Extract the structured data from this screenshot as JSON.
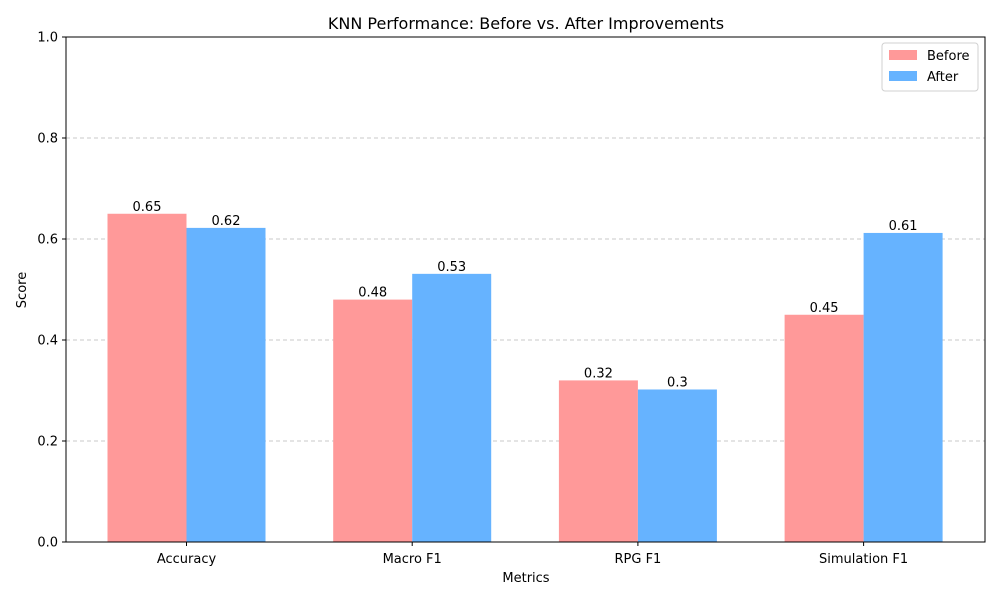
{
  "chart_data": {
    "type": "bar",
    "title": "KNN Performance: Before vs. After Improvements",
    "xlabel": "Metrics",
    "ylabel": "Score",
    "categories": [
      "Accuracy",
      "Macro F1",
      "RPG F1",
      "Simulation F1"
    ],
    "series": [
      {
        "name": "Before",
        "color": "#ff9999",
        "values": [
          0.65,
          0.48,
          0.32,
          0.45
        ],
        "labels": [
          "0.65",
          "0.48",
          "0.32",
          "0.45"
        ]
      },
      {
        "name": "After",
        "color": "#66b3ff",
        "values": [
          0.622,
          0.531,
          0.302,
          0.612
        ],
        "labels": [
          "0.62",
          "0.53",
          "0.3",
          "0.61"
        ]
      }
    ],
    "ylim": [
      0,
      1.0
    ],
    "yticks": [
      0.0,
      0.2,
      0.4,
      0.6,
      0.8,
      1.0
    ],
    "ytick_labels": [
      "0.0",
      "0.2",
      "0.4",
      "0.6",
      "0.8",
      "1.0"
    ],
    "grid": "y-dashed",
    "legend_position": "top-right"
  }
}
